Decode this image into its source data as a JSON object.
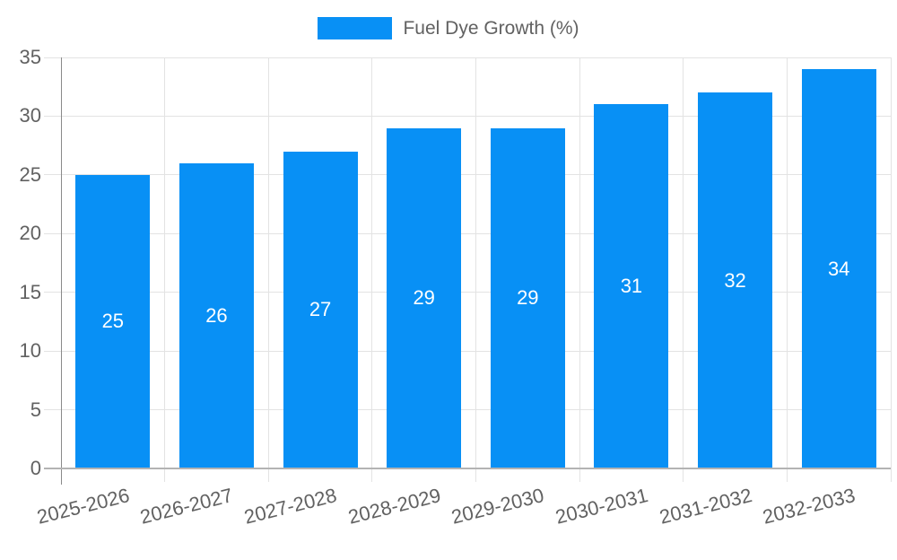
{
  "legend": {
    "label": "Fuel Dye Growth (%)"
  },
  "chart_data": {
    "type": "bar",
    "title": "Fuel Dye Growth (%)",
    "categories": [
      "2025-2026",
      "2026-2027",
      "2027-2028",
      "2028-2029",
      "2029-2030",
      "2030-2031",
      "2031-2032",
      "2032-2033"
    ],
    "values": [
      25,
      26,
      27,
      29,
      29,
      31,
      32,
      34
    ],
    "xlabel": "",
    "ylabel": "",
    "ylim": [
      0,
      35
    ],
    "yticks": [
      0,
      5,
      10,
      15,
      20,
      25,
      30,
      35
    ],
    "grid": true,
    "legend_position": "top-center",
    "bar_color": "#0890f5",
    "bar_label_color": "#ffffff",
    "axis_text_color": "#616161",
    "gridline_color": "#e3e3e3",
    "axis_line_color": "#8a8a8a",
    "baseline_color": "#b3b3b3"
  }
}
